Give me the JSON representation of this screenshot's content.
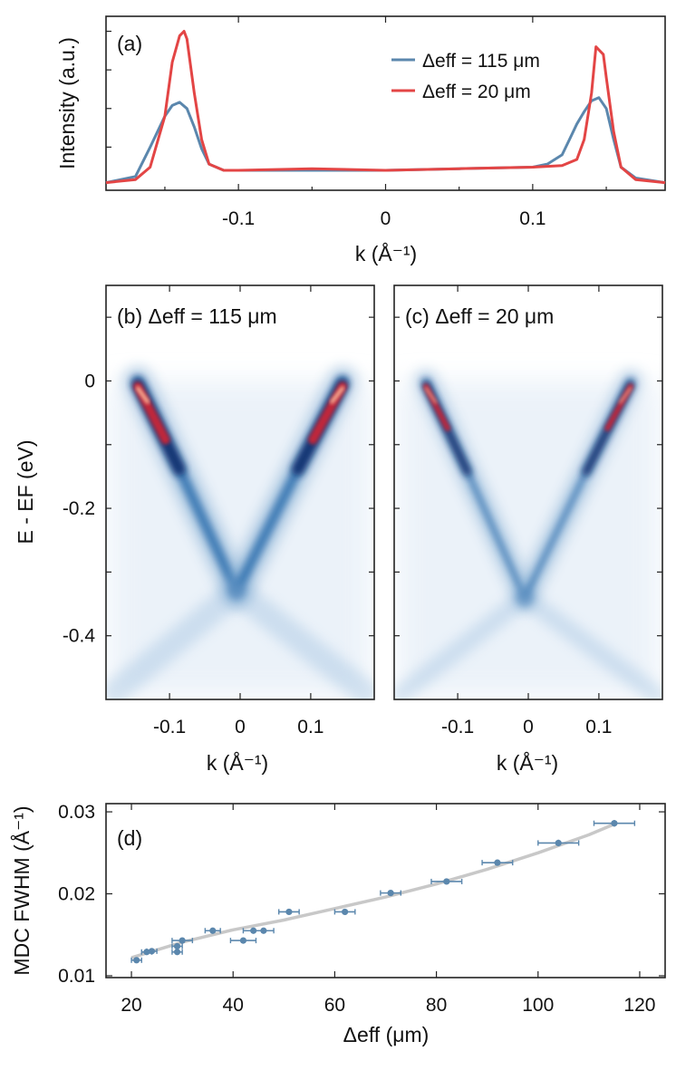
{
  "chart_data": [
    {
      "panel": "a",
      "type": "line",
      "panel_label": "(a)",
      "xlabel": "k (Å⁻¹)",
      "ylabel": "Intensity (a.u.)",
      "xlim": [
        -0.19,
        0.19
      ],
      "ylim": [
        0,
        1.05
      ],
      "xticks": [
        -0.1,
        0,
        0.1
      ],
      "xtick_labels": [
        "-0.1",
        "0",
        "0.1"
      ],
      "legend": {
        "position": "top-right",
        "entries": [
          "Δeff = 115 μm",
          "Δeff = 20 μm"
        ]
      },
      "series": [
        {
          "name": "Δeff = 115 μm",
          "color": "#5b87ad",
          "x": [
            -0.19,
            -0.17,
            -0.16,
            -0.15,
            -0.145,
            -0.14,
            -0.135,
            -0.13,
            -0.125,
            -0.12,
            -0.11,
            -0.1,
            -0.05,
            0,
            0.05,
            0.1,
            0.11,
            0.12,
            0.125,
            0.13,
            0.135,
            0.14,
            0.145,
            0.15,
            0.155,
            0.16,
            0.17,
            0.19
          ],
          "values": [
            0.02,
            0.06,
            0.25,
            0.45,
            0.52,
            0.54,
            0.5,
            0.38,
            0.24,
            0.14,
            0.1,
            0.1,
            0.1,
            0.1,
            0.11,
            0.12,
            0.14,
            0.2,
            0.3,
            0.4,
            0.48,
            0.55,
            0.57,
            0.5,
            0.3,
            0.12,
            0.05,
            0.02
          ]
        },
        {
          "name": "Δeff = 20 μm",
          "color": "#e34545",
          "x": [
            -0.19,
            -0.17,
            -0.16,
            -0.15,
            -0.145,
            -0.14,
            -0.137,
            -0.135,
            -0.13,
            -0.125,
            -0.12,
            -0.11,
            -0.1,
            -0.05,
            0,
            0.05,
            0.1,
            0.12,
            0.13,
            0.135,
            0.14,
            0.143,
            0.145,
            0.148,
            0.15,
            0.155,
            0.16,
            0.17,
            0.19
          ],
          "values": [
            0.02,
            0.04,
            0.12,
            0.45,
            0.8,
            0.97,
            1.0,
            0.95,
            0.6,
            0.3,
            0.14,
            0.1,
            0.1,
            0.11,
            0.1,
            0.11,
            0.12,
            0.13,
            0.17,
            0.3,
            0.6,
            0.9,
            0.88,
            0.85,
            0.7,
            0.35,
            0.12,
            0.04,
            0.02
          ]
        }
      ]
    },
    {
      "panel": "b",
      "type": "heatmap",
      "panel_label": "(b) Δeff = 115 μm",
      "xlabel": "k (Å⁻¹)",
      "ylabel": "E - EF (eV)",
      "xlim": [
        -0.19,
        0.19
      ],
      "ylim": [
        -0.5,
        0.15
      ],
      "xticks": [
        -0.1,
        0,
        0.1
      ],
      "xtick_labels": [
        "-0.1",
        "0",
        "0.1"
      ],
      "yticks": [
        0,
        -0.2,
        -0.4
      ],
      "ytick_labels": [
        "0",
        "-0.2",
        "-0.4"
      ],
      "dirac_point": {
        "k": -0.005,
        "E": -0.33
      },
      "band_kF": [
        -0.145,
        0.145
      ],
      "color_scale": [
        "#ffffff",
        "#c9ddee",
        "#3a78b8",
        "#0c2a6b",
        "#c0283a",
        "#ffd0b0"
      ]
    },
    {
      "panel": "c",
      "type": "heatmap",
      "panel_label": "(c) Δeff = 20 μm",
      "xlabel": "k (Å⁻¹)",
      "xlim": [
        -0.19,
        0.19
      ],
      "ylim": [
        -0.5,
        0.15
      ],
      "xticks": [
        -0.1,
        0,
        0.1
      ],
      "xtick_labels": [
        "-0.1",
        "0",
        "0.1"
      ],
      "dirac_point": {
        "k": -0.005,
        "E": -0.34
      },
      "band_kF": [
        -0.145,
        0.145
      ]
    },
    {
      "panel": "d",
      "type": "scatter",
      "panel_label": "(d)",
      "xlabel": "Δeff (μm)",
      "ylabel": "MDC FWHM (Å⁻¹)",
      "xlim": [
        15,
        125
      ],
      "ylim": [
        0.01,
        0.031
      ],
      "xticks": [
        20,
        40,
        60,
        80,
        100,
        120
      ],
      "xtick_labels": [
        "20",
        "40",
        "60",
        "80",
        "100",
        "120"
      ],
      "yticks": [
        0.01,
        0.02,
        0.03
      ],
      "ytick_labels": [
        "0.01",
        "0.02",
        "0.03"
      ],
      "points": {
        "x": [
          21,
          23,
          24,
          29,
          29,
          30,
          36,
          42,
          44,
          46,
          51,
          62,
          71,
          82,
          92,
          104,
          115
        ],
        "y": [
          0.0119,
          0.0129,
          0.013,
          0.0129,
          0.0136,
          0.0143,
          0.0155,
          0.0143,
          0.0155,
          0.0155,
          0.0178,
          0.0178,
          0.0201,
          0.0215,
          0.0238,
          0.0262,
          0.0286
        ],
        "xerr": [
          1.0,
          1.0,
          1.0,
          1.0,
          1.0,
          2.0,
          1.5,
          2.5,
          2.0,
          2.0,
          2.0,
          2.0,
          2.0,
          3.0,
          3.0,
          4.0,
          4.0
        ],
        "yerr": [
          0.0003,
          0.0003,
          0.0003,
          0.0003,
          0.0003,
          0.0003,
          0.0003,
          0.0003,
          0.0003,
          0.0003,
          0.0003,
          0.0003,
          0.0003,
          0.0003,
          0.0003,
          0.0004,
          0.0004
        ],
        "color": "#5b87ad"
      },
      "fit_curve": {
        "x": [
          20,
          30,
          40,
          50,
          60,
          70,
          80,
          90,
          100,
          110,
          115
        ],
        "y": [
          0.0122,
          0.0141,
          0.0156,
          0.0168,
          0.0182,
          0.0196,
          0.0212,
          0.023,
          0.025,
          0.0272,
          0.0285
        ],
        "color": "#c8c8c8"
      }
    }
  ]
}
